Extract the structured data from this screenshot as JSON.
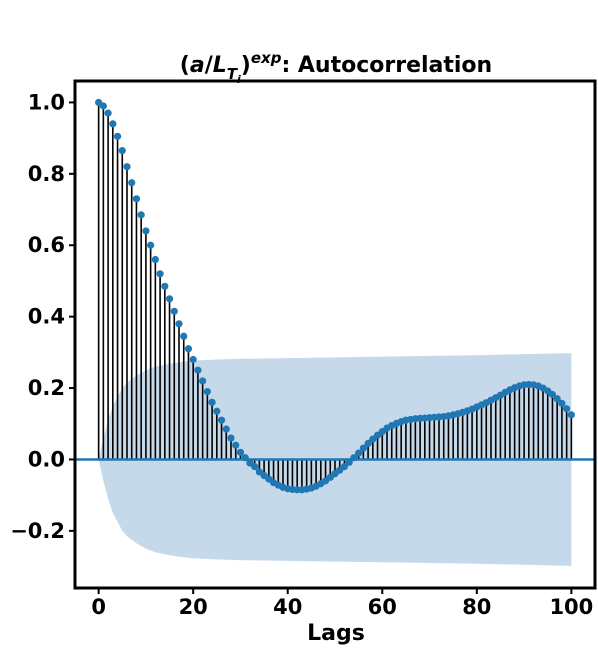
{
  "chart_data": {
    "type": "bar",
    "title": {
      "paren_open": "(",
      "a": "a",
      "slash": "/",
      "L": "L",
      "sub_T": "T",
      "sub_i": "i",
      "paren_close": ")",
      "sup": "exp",
      "rest": ": Autocorrelation"
    },
    "xlabel": "Lags",
    "ylabel": "",
    "xlim": [
      -5,
      105
    ],
    "ylim": [
      -0.36,
      1.06
    ],
    "xticks": [
      0,
      20,
      40,
      60,
      80,
      100
    ],
    "xtick_labels": [
      "0",
      "20",
      "40",
      "60",
      "80",
      "100"
    ],
    "yticks": [
      -0.2,
      0.0,
      0.2,
      0.4,
      0.6,
      0.8,
      1.0
    ],
    "ytick_labels": [
      "−0.2",
      "0.0",
      "0.2",
      "0.4",
      "0.6",
      "0.8",
      "1.0"
    ],
    "grid": false,
    "lags": [
      0,
      1,
      2,
      3,
      4,
      5,
      6,
      7,
      8,
      9,
      10,
      11,
      12,
      13,
      14,
      15,
      16,
      17,
      18,
      19,
      20,
      21,
      22,
      23,
      24,
      25,
      26,
      27,
      28,
      29,
      30,
      31,
      32,
      33,
      34,
      35,
      36,
      37,
      38,
      39,
      40,
      41,
      42,
      43,
      44,
      45,
      46,
      47,
      48,
      49,
      50,
      51,
      52,
      53,
      54,
      55,
      56,
      57,
      58,
      59,
      60,
      61,
      62,
      63,
      64,
      65,
      66,
      67,
      68,
      69,
      70,
      71,
      72,
      73,
      74,
      75,
      76,
      77,
      78,
      79,
      80,
      81,
      82,
      83,
      84,
      85,
      86,
      87,
      88,
      89,
      90,
      91,
      92,
      93,
      94,
      95,
      96,
      97,
      98,
      99,
      100
    ],
    "acf": [
      1.0,
      0.99,
      0.97,
      0.94,
      0.905,
      0.865,
      0.82,
      0.775,
      0.73,
      0.685,
      0.64,
      0.6,
      0.56,
      0.52,
      0.485,
      0.45,
      0.415,
      0.38,
      0.345,
      0.31,
      0.28,
      0.25,
      0.22,
      0.19,
      0.16,
      0.135,
      0.11,
      0.085,
      0.06,
      0.04,
      0.02,
      0.005,
      -0.01,
      -0.02,
      -0.035,
      -0.045,
      -0.055,
      -0.065,
      -0.072,
      -0.078,
      -0.082,
      -0.084,
      -0.085,
      -0.085,
      -0.083,
      -0.08,
      -0.075,
      -0.068,
      -0.06,
      -0.05,
      -0.04,
      -0.03,
      -0.02,
      -0.008,
      0.005,
      0.018,
      0.032,
      0.045,
      0.057,
      0.068,
      0.078,
      0.088,
      0.095,
      0.101,
      0.106,
      0.11,
      0.112,
      0.114,
      0.115,
      0.116,
      0.117,
      0.118,
      0.119,
      0.12,
      0.122,
      0.125,
      0.128,
      0.132,
      0.136,
      0.141,
      0.147,
      0.153,
      0.159,
      0.166,
      0.173,
      0.18,
      0.188,
      0.195,
      0.201,
      0.206,
      0.209,
      0.21,
      0.209,
      0.206,
      0.2,
      0.192,
      0.182,
      0.17,
      0.157,
      0.142,
      0.125
    ],
    "confidence_band": {
      "lags": [
        0,
        1,
        2,
        3,
        4,
        5,
        6,
        8,
        10,
        12,
        15,
        18,
        20,
        25,
        30,
        40,
        50,
        60,
        70,
        80,
        90,
        100
      ],
      "upper": [
        0.0,
        0.06,
        0.11,
        0.15,
        0.175,
        0.2,
        0.215,
        0.235,
        0.25,
        0.26,
        0.268,
        0.274,
        0.277,
        0.28,
        0.282,
        0.284,
        0.286,
        0.288,
        0.29,
        0.292,
        0.295,
        0.298
      ],
      "lower": [
        0.0,
        -0.06,
        -0.11,
        -0.15,
        -0.175,
        -0.2,
        -0.215,
        -0.235,
        -0.25,
        -0.26,
        -0.268,
        -0.274,
        -0.277,
        -0.28,
        -0.282,
        -0.284,
        -0.286,
        -0.288,
        -0.29,
        -0.292,
        -0.295,
        -0.298
      ]
    },
    "colors": {
      "markers": "#1f77b4",
      "stems": "#000000",
      "zero_line": "#1f77b4",
      "band": "#c6d9ea"
    }
  }
}
